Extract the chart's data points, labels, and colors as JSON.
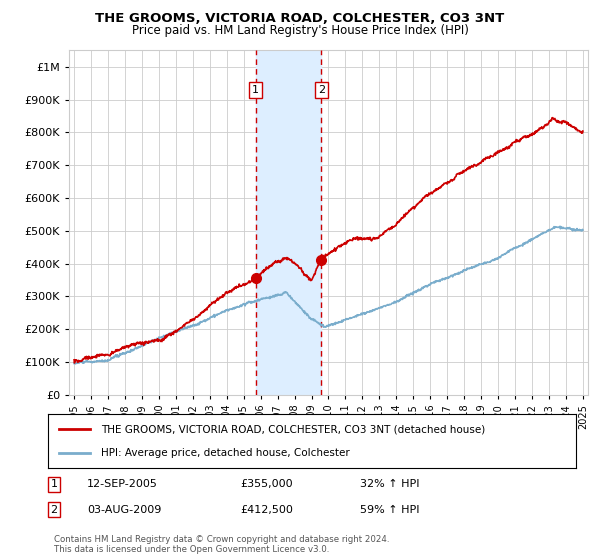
{
  "title": "THE GROOMS, VICTORIA ROAD, COLCHESTER, CO3 3NT",
  "subtitle": "Price paid vs. HM Land Registry's House Price Index (HPI)",
  "legend_line1": "THE GROOMS, VICTORIA ROAD, COLCHESTER, CO3 3NT (detached house)",
  "legend_line2": "HPI: Average price, detached house, Colchester",
  "transaction1_date": "12-SEP-2005",
  "transaction1_price": 355000,
  "transaction1_pct": "32%",
  "transaction2_date": "03-AUG-2009",
  "transaction2_price": 412500,
  "transaction2_pct": "59%",
  "footnote": "Contains HM Land Registry data © Crown copyright and database right 2024.\nThis data is licensed under the Open Government Licence v3.0.",
  "red_color": "#cc0000",
  "blue_color": "#7aadcc",
  "shade_color": "#ddeeff",
  "vline_color": "#cc0000",
  "grid_color": "#cccccc",
  "background_color": "#ffffff",
  "ylim": [
    0,
    1050000
  ],
  "xlim_start": 1994.7,
  "xlim_end": 2025.3,
  "transaction1_x": 2005.7,
  "transaction2_x": 2009.58
}
